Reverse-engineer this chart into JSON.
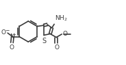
{
  "bg_color": "#ffffff",
  "line_color": "#3a3a3a",
  "line_width": 1.2,
  "font_size": 6.5,
  "figsize": [
    1.84,
    0.95
  ],
  "dpi": 100,
  "xlim": [
    0,
    1.84
  ],
  "ylim": [
    0,
    0.95
  ]
}
